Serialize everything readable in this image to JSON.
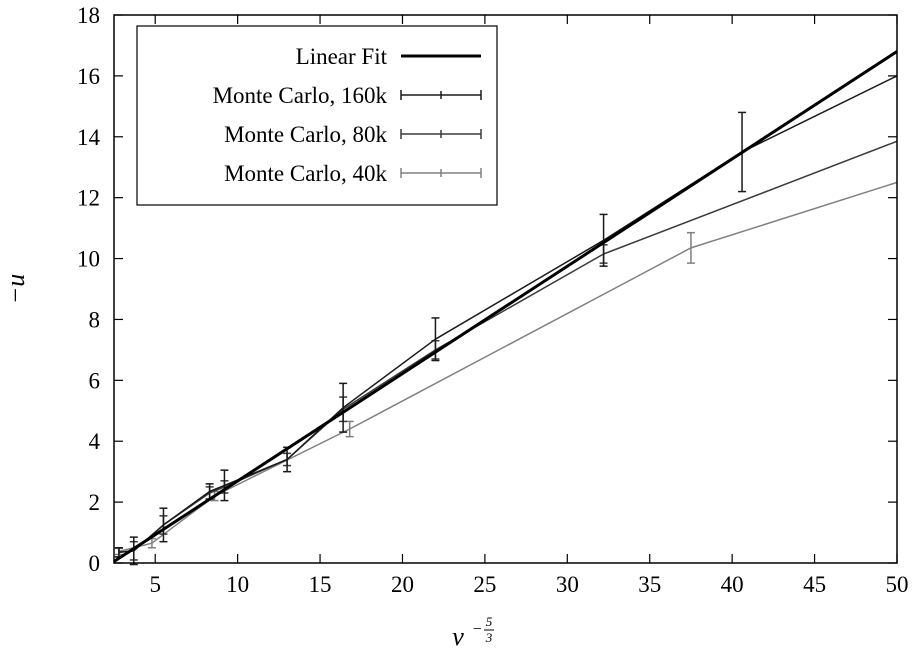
{
  "chart_data": {
    "type": "line",
    "xlabel": "ν",
    "xlabel_exponent": "−",
    "xlabel_exp_num": "5",
    "xlabel_exp_den": "3",
    "ylabel": "−u",
    "xlim": [
      2.5,
      50
    ],
    "ylim": [
      0,
      18
    ],
    "x_ticks": [
      5,
      10,
      15,
      20,
      25,
      30,
      35,
      40,
      45,
      50
    ],
    "y_ticks": [
      0,
      2,
      4,
      6,
      8,
      10,
      12,
      14,
      16,
      18
    ],
    "grid": false,
    "legend_position": "top-left",
    "series": [
      {
        "name": "Linear Fit",
        "color": "#000000",
        "style": "thick-line",
        "x": [
          2.5,
          50
        ],
        "y": [
          0.05,
          16.8
        ]
      },
      {
        "name": "Monte Carlo, 160k",
        "color": "#1a1a1a",
        "style": "line-errorbars",
        "x": [
          2.8,
          3.7,
          5.5,
          8.3,
          9.2,
          13.0,
          16.4,
          22.0,
          32.2,
          40.6,
          50.0
        ],
        "y": [
          0.35,
          0.4,
          1.25,
          2.35,
          2.55,
          3.4,
          5.1,
          7.35,
          10.6,
          13.5,
          16.0
        ],
        "err": [
          0.15,
          0.45,
          0.55,
          0.25,
          0.5,
          0.4,
          0.8,
          0.7,
          0.85,
          1.3,
          0
        ]
      },
      {
        "name": "Monte Carlo, 80k",
        "color": "#3a3a3a",
        "style": "line-errorbars",
        "x": [
          2.8,
          3.7,
          5.5,
          8.3,
          9.2,
          13.0,
          16.4,
          22.0,
          32.2,
          50.0
        ],
        "y": [
          0.35,
          0.4,
          1.25,
          2.3,
          2.5,
          3.4,
          5.05,
          7.0,
          10.15,
          13.85
        ],
        "err": [
          0.15,
          0.3,
          0.3,
          0.2,
          0.2,
          0.2,
          0.4,
          0.3,
          0.3,
          0
        ]
      },
      {
        "name": "Monte Carlo, 40k",
        "color": "#808080",
        "style": "line-errorbars",
        "x": [
          2.8,
          4.8,
          8.6,
          16.8,
          37.5,
          50.0
        ],
        "y": [
          0.38,
          0.65,
          2.2,
          4.4,
          10.35,
          12.5
        ],
        "err": [
          0.1,
          0.15,
          0.15,
          0.25,
          0.5,
          0
        ]
      }
    ]
  }
}
